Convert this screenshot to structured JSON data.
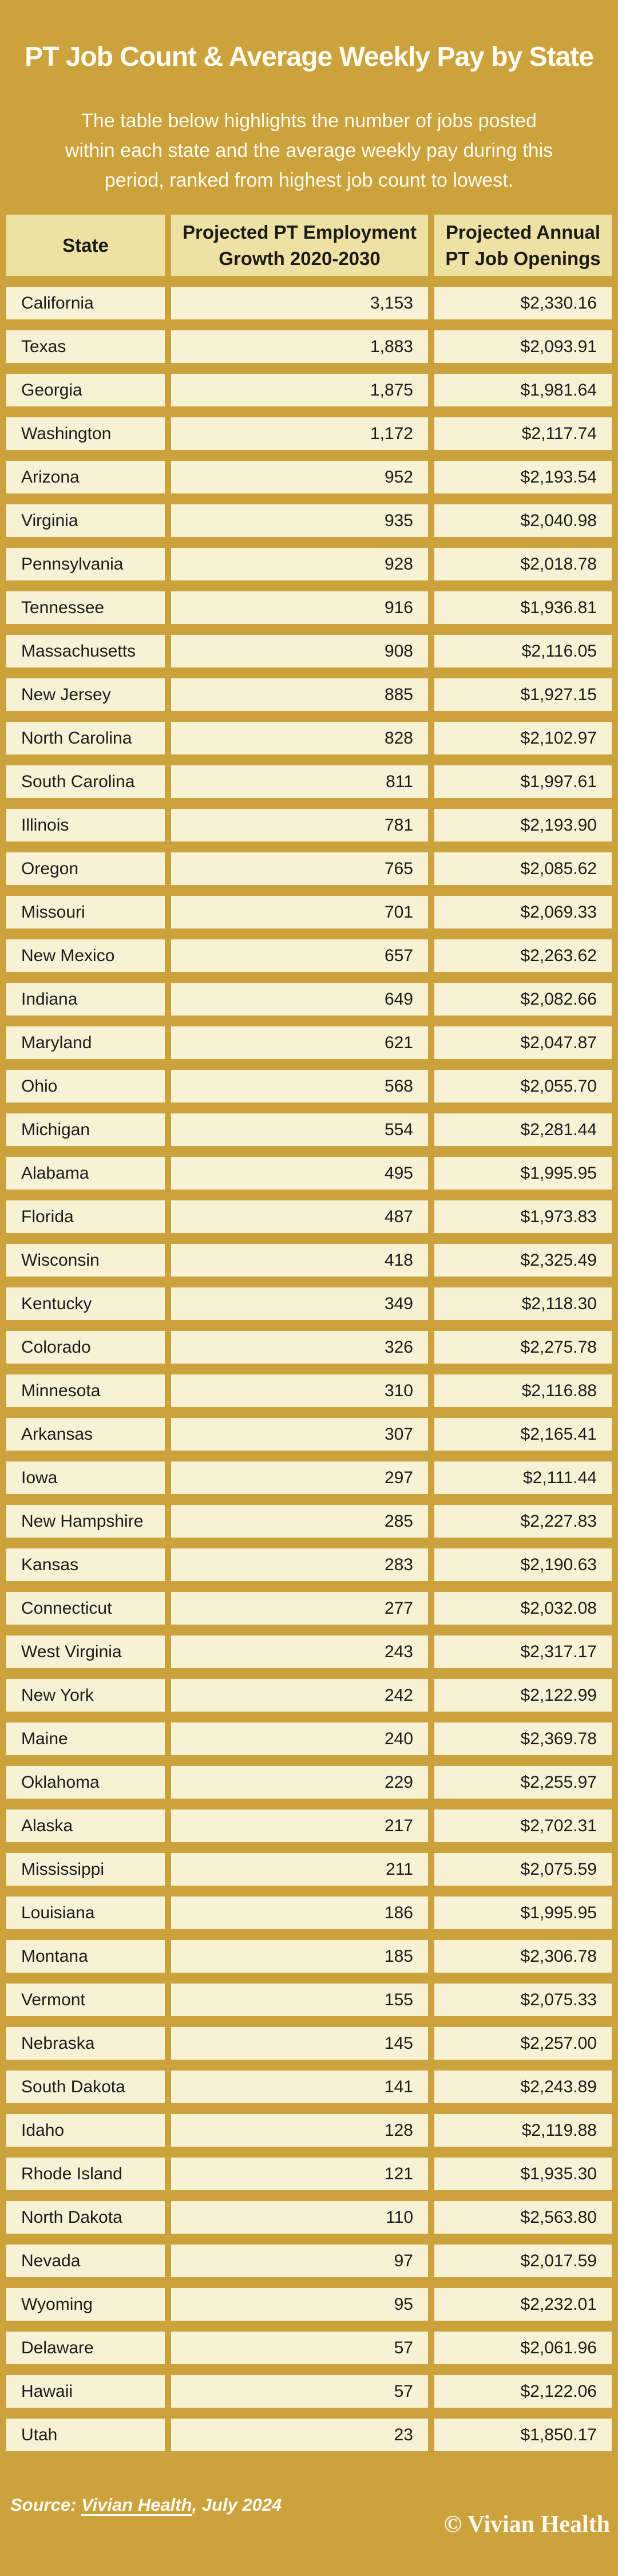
{
  "header": {
    "title": "PT Job Count & Average Weekly Pay by State",
    "subtitle_lines": [
      "The table below highlights the number of jobs posted",
      "within each state and the average weekly pay during this",
      "period, ranked from highest job count to lowest."
    ]
  },
  "chart_data": {
    "type": "table",
    "columns": [
      "State",
      "Projected PT Employment Growth 2020-2030",
      "Projected Annual PT Job Openings"
    ],
    "rows": [
      [
        "California",
        "3,153",
        "$2,330.16"
      ],
      [
        "Texas",
        "1,883",
        "$2,093.91"
      ],
      [
        "Georgia",
        "1,875",
        "$1,981.64"
      ],
      [
        "Washington",
        "1,172",
        "$2,117.74"
      ],
      [
        "Arizona",
        "952",
        "$2,193.54"
      ],
      [
        "Virginia",
        "935",
        "$2,040.98"
      ],
      [
        "Pennsylvania",
        "928",
        "$2,018.78"
      ],
      [
        "Tennessee",
        "916",
        "$1,936.81"
      ],
      [
        "Massachusetts",
        "908",
        "$2,116.05"
      ],
      [
        "New Jersey",
        "885",
        "$1,927.15"
      ],
      [
        "North Carolina",
        "828",
        "$2,102.97"
      ],
      [
        "South Carolina",
        "811",
        "$1,997.61"
      ],
      [
        "Illinois",
        "781",
        "$2,193.90"
      ],
      [
        "Oregon",
        "765",
        "$2,085.62"
      ],
      [
        "Missouri",
        "701",
        "$2,069.33"
      ],
      [
        "New Mexico",
        "657",
        "$2,263.62"
      ],
      [
        "Indiana",
        "649",
        "$2,082.66"
      ],
      [
        "Maryland",
        "621",
        "$2,047.87"
      ],
      [
        "Ohio",
        "568",
        "$2,055.70"
      ],
      [
        "Michigan",
        "554",
        "$2,281.44"
      ],
      [
        "Alabama",
        "495",
        "$1,995.95"
      ],
      [
        "Florida",
        "487",
        "$1,973.83"
      ],
      [
        "Wisconsin",
        "418",
        "$2,325.49"
      ],
      [
        "Kentucky",
        "349",
        "$2,118.30"
      ],
      [
        "Colorado",
        "326",
        "$2,275.78"
      ],
      [
        "Minnesota",
        "310",
        "$2,116.88"
      ],
      [
        "Arkansas",
        "307",
        "$2,165.41"
      ],
      [
        "Iowa",
        "297",
        "$2,111.44"
      ],
      [
        "New Hampshire",
        "285",
        "$2,227.83"
      ],
      [
        "Kansas",
        "283",
        "$2,190.63"
      ],
      [
        "Connecticut",
        "277",
        "$2,032.08"
      ],
      [
        "West Virginia",
        "243",
        "$2,317.17"
      ],
      [
        "New York",
        "242",
        "$2,122.99"
      ],
      [
        "Maine",
        "240",
        "$2,369.78"
      ],
      [
        "Oklahoma",
        "229",
        "$2,255.97"
      ],
      [
        "Alaska",
        "217",
        "$2,702.31"
      ],
      [
        "Mississippi",
        "211",
        "$2,075.59"
      ],
      [
        "Louisiana",
        "186",
        "$1,995.95"
      ],
      [
        "Montana",
        "185",
        "$2,306.78"
      ],
      [
        "Vermont",
        "155",
        "$2,075.33"
      ],
      [
        "Nebraska",
        "145",
        "$2,257.00"
      ],
      [
        "South Dakota",
        "141",
        "$2,243.89"
      ],
      [
        "Idaho",
        "128",
        "$2,119.88"
      ],
      [
        "Rhode Island",
        "121",
        "$1,935.30"
      ],
      [
        "North Dakota",
        "110",
        "$2,563.80"
      ],
      [
        "Nevada",
        "97",
        "$2,017.59"
      ],
      [
        "Wyoming",
        "95",
        "$2,232.01"
      ],
      [
        "Delaware",
        "57",
        "$2,061.96"
      ],
      [
        "Hawaii",
        "57",
        "$2,122.06"
      ],
      [
        "Utah",
        "23",
        "$1,850.17"
      ]
    ]
  },
  "footer": {
    "source_prefix": "Source: ",
    "source_link": "Vivian Health",
    "source_suffix": ", July 2024",
    "copyright": "© Vivian Health"
  },
  "colors": {
    "background": "#CBA23C",
    "header_cell": "#EDE1A3",
    "data_cell": "#F7F1D6",
    "text_dark": "#1B1B18",
    "text_light": "#FDFBF2"
  }
}
